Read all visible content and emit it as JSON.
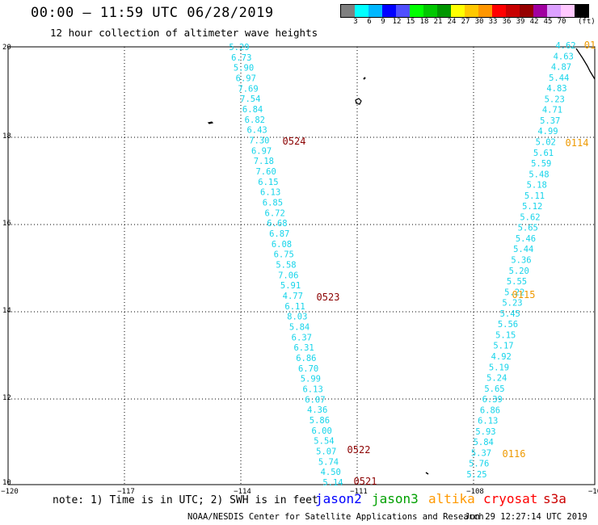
{
  "header": {
    "title": "00:00 – 11:59 UTC 06/28/2019",
    "subtitle": "12 hour collection of altimeter wave heights"
  },
  "colorbar": {
    "colors": [
      "#7f7f7f",
      "#00ffff",
      "#00b7ff",
      "#0000ff",
      "#4f4fff",
      "#00ff00",
      "#00c800",
      "#009600",
      "#ffff00",
      "#ffc800",
      "#ff9600",
      "#ff0000",
      "#c80000",
      "#960000",
      "#a000a0",
      "#dca0ff",
      "#ffc8ff",
      "#000000"
    ],
    "labels": [
      "3",
      "6",
      "9",
      "12",
      "15",
      "18",
      "21",
      "24",
      "27",
      "30",
      "33",
      "36",
      "39",
      "42",
      "45",
      "70"
    ],
    "unit": "(ft)"
  },
  "map": {
    "lon_ticks": [
      "−120",
      "−117",
      "−114",
      "−111",
      "−108",
      "−10"
    ],
    "lat_ticks": [
      "20",
      "18",
      "16",
      "14",
      "12",
      "10"
    ],
    "tracks": [
      {
        "id": "west",
        "color": "#17d4ea",
        "values": [
          "5.29",
          "6.73",
          "5.90",
          "6.97",
          "7.69",
          "7.54",
          "6.84",
          "6.82",
          "6.43",
          "7.30",
          "6.97",
          "7.18",
          "7.60",
          "6.15",
          "6.13",
          "6.85",
          "6.72",
          "6.68",
          "6.87",
          "6.08",
          "6.75",
          "5.58",
          "7.06",
          "5.91",
          "4.77",
          "6.11",
          "8.03",
          "5.84",
          "6.37",
          "6.31",
          "6.86",
          "6.70",
          "5.99",
          "6.13",
          "6.07",
          "4.36",
          "5.86",
          "6.00",
          "5.54",
          "5.07",
          "5.74",
          "4.50",
          "5.14"
        ]
      },
      {
        "id": "east",
        "color": "#17d4ea",
        "values": [
          "4.62",
          "4.63",
          "4.87",
          "5.44",
          "4.83",
          "5.23",
          "4.71",
          "5.37",
          "4.99",
          "5.02",
          "5.61",
          "5.59",
          "5.48",
          "5.18",
          "5.11",
          "5.12",
          "5.62",
          "5.65",
          "5.46",
          "5.44",
          "5.36",
          "5.20",
          "5.55",
          "5.22",
          "5.23",
          "5.45",
          "5.56",
          "5.15",
          "5.17",
          "4.92",
          "5.19",
          "5.24",
          "5.65",
          "6.39",
          "6.86",
          "6.13",
          "5.93",
          "5.84",
          "5.37",
          "5.76",
          "5.25"
        ]
      }
    ],
    "time_labels_west": [
      {
        "text": "0524",
        "color": "#8b0000"
      },
      {
        "text": "0523",
        "color": "#8b0000"
      },
      {
        "text": "0522",
        "color": "#8b0000"
      },
      {
        "text": "0521",
        "color": "#8b0000"
      }
    ],
    "time_labels_east": [
      {
        "text": "01",
        "color": "#ee9900"
      },
      {
        "text": "0114",
        "color": "#ee9900"
      },
      {
        "text": "0115",
        "color": "#ee9900"
      },
      {
        "text": "0116",
        "color": "#ee9900"
      }
    ]
  },
  "footer": {
    "note": "note: 1) Time is in UTC; 2) SWH is in feet",
    "satellites": [
      {
        "name": "jason2",
        "color": "#0000ff"
      },
      {
        "name": "jason3",
        "color": "#00a000"
      },
      {
        "name": "altika",
        "color": "#ff9900"
      },
      {
        "name": "cryosat",
        "color": "#ff0000"
      },
      {
        "name": "s3a",
        "color": "#cc0000"
      }
    ],
    "credit": "NOAA/NESDIS Center for Satellite Applications and Research",
    "timestamp": "Jun 29 12:27:14 UTC 2019"
  }
}
